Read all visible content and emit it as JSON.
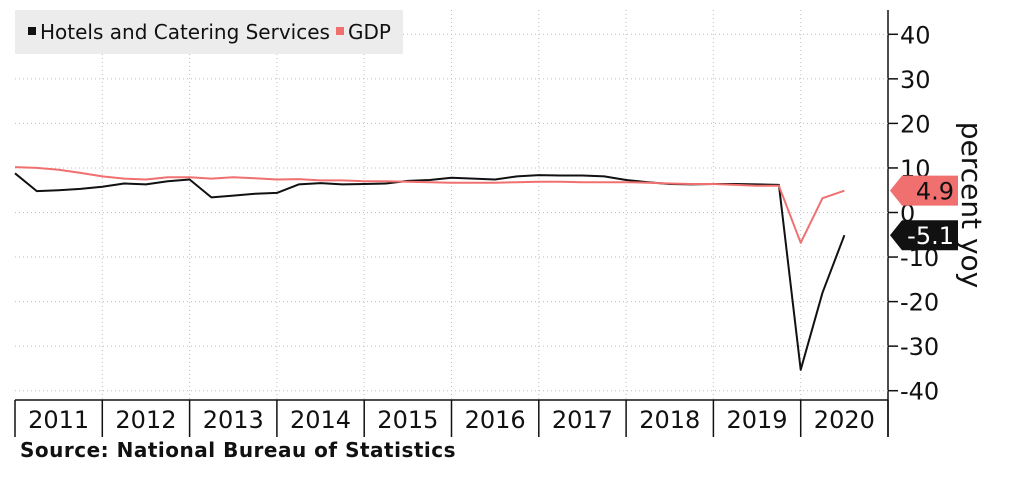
{
  "chart_data": {
    "type": "line",
    "title": "",
    "xlabel": "",
    "ylabel": "percent yoy",
    "ylim": [
      -45,
      45
    ],
    "yticks": [
      40,
      30,
      20,
      10,
      0,
      -10,
      -20,
      -30,
      -40
    ],
    "ytick_labels": [
      "40",
      "30",
      "20",
      "10",
      "0",
      "-10",
      "-20",
      "-30",
      "-40"
    ],
    "years": [
      "2011",
      "2012",
      "2013",
      "2014",
      "2015",
      "2016",
      "2017",
      "2018",
      "2019",
      "2020"
    ],
    "x": [
      "2011Q1",
      "2011Q2",
      "2011Q3",
      "2011Q4",
      "2012Q1",
      "2012Q2",
      "2012Q3",
      "2012Q4",
      "2013Q1",
      "2013Q2",
      "2013Q3",
      "2013Q4",
      "2014Q1",
      "2014Q2",
      "2014Q3",
      "2014Q4",
      "2015Q1",
      "2015Q2",
      "2015Q3",
      "2015Q4",
      "2016Q1",
      "2016Q2",
      "2016Q3",
      "2016Q4",
      "2017Q1",
      "2017Q2",
      "2017Q3",
      "2017Q4",
      "2018Q1",
      "2018Q2",
      "2018Q3",
      "2018Q4",
      "2019Q1",
      "2019Q2",
      "2019Q3",
      "2019Q4",
      "2020Q1",
      "2020Q2",
      "2020Q3"
    ],
    "grid": true,
    "legend_position": "top-left",
    "series": [
      {
        "name": "Hotels and Catering Services",
        "color": "#111111",
        "values": [
          8.8,
          4.8,
          5.0,
          5.3,
          5.8,
          6.5,
          6.3,
          7.0,
          7.4,
          3.4,
          3.8,
          4.2,
          4.4,
          6.3,
          6.6,
          6.3,
          6.4,
          6.5,
          7.1,
          7.3,
          7.8,
          7.6,
          7.4,
          8.1,
          8.4,
          8.3,
          8.3,
          8.1,
          7.3,
          6.8,
          6.4,
          6.3,
          6.4,
          6.4,
          6.3,
          6.2,
          -35.3,
          -18.0,
          -5.1
        ],
        "last_label": "-5.1"
      },
      {
        "name": "GDP",
        "color": "#f07070",
        "values": [
          10.2,
          10.0,
          9.6,
          8.9,
          8.1,
          7.6,
          7.4,
          7.9,
          7.9,
          7.6,
          7.9,
          7.7,
          7.4,
          7.5,
          7.2,
          7.2,
          7.0,
          7.0,
          6.9,
          6.8,
          6.7,
          6.7,
          6.7,
          6.8,
          6.9,
          6.9,
          6.8,
          6.8,
          6.8,
          6.7,
          6.5,
          6.4,
          6.4,
          6.2,
          6.0,
          6.0,
          -6.8,
          3.2,
          4.9
        ],
        "last_label": "4.9"
      }
    ]
  },
  "source": "Source: National Bureau of Statistics"
}
